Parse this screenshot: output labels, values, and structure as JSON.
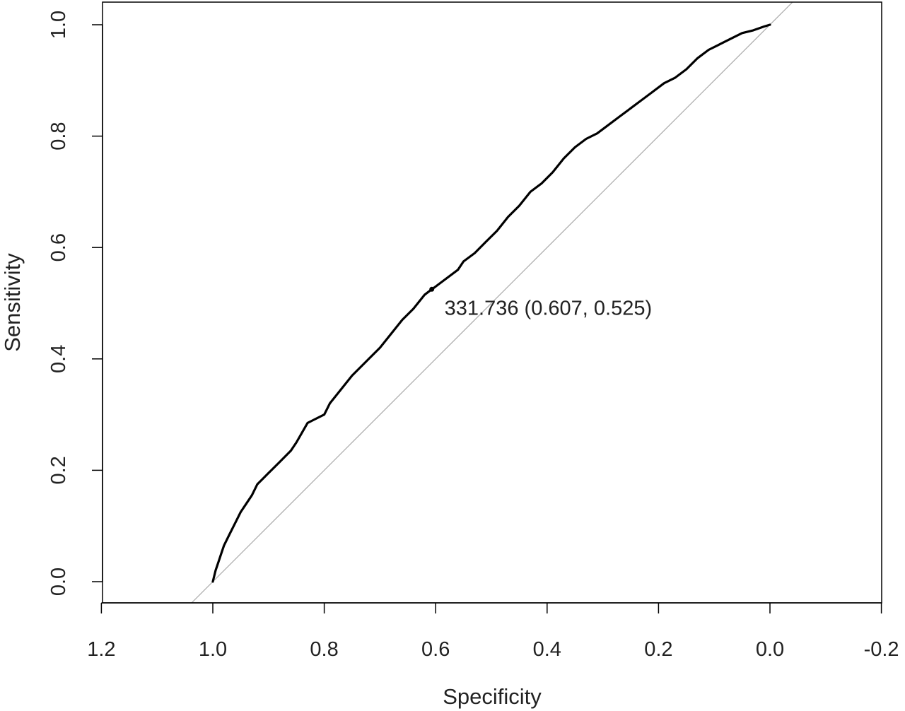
{
  "chart_data": {
    "type": "line",
    "title": "",
    "xlabel": "Specificity",
    "ylabel": "Sensitivity",
    "x_reversed": true,
    "xlim": [
      1.2,
      -0.2
    ],
    "ylim": [
      0.0,
      1.0
    ],
    "x_ticks": [
      1.2,
      1.0,
      0.8,
      0.6,
      0.4,
      0.2,
      0.0,
      -0.2
    ],
    "x_tick_labels": [
      "1.2",
      "1.0",
      "0.8",
      "0.6",
      "0.4",
      "0.2",
      "0.0",
      "-0.2"
    ],
    "y_ticks": [
      0.0,
      0.2,
      0.4,
      0.6,
      0.8,
      1.0
    ],
    "y_tick_labels": [
      "0.0",
      "0.2",
      "0.4",
      "0.6",
      "0.8",
      "1.0"
    ],
    "grid": false,
    "legend": "none",
    "series": [
      {
        "color": "#000000",
        "x": [
          1.0,
          0.995,
          0.99,
          0.985,
          0.98,
          0.97,
          0.96,
          0.95,
          0.94,
          0.93,
          0.92,
          0.91,
          0.9,
          0.88,
          0.86,
          0.85,
          0.83,
          0.82,
          0.8,
          0.79,
          0.77,
          0.75,
          0.72,
          0.7,
          0.68,
          0.66,
          0.64,
          0.62,
          0.607,
          0.6,
          0.58,
          0.56,
          0.55,
          0.53,
          0.51,
          0.49,
          0.47,
          0.45,
          0.43,
          0.41,
          0.39,
          0.37,
          0.35,
          0.33,
          0.31,
          0.29,
          0.27,
          0.25,
          0.23,
          0.21,
          0.19,
          0.17,
          0.15,
          0.13,
          0.11,
          0.09,
          0.07,
          0.05,
          0.03,
          0.01,
          0.0
        ],
        "y": [
          0.0,
          0.02,
          0.035,
          0.05,
          0.065,
          0.085,
          0.105,
          0.125,
          0.14,
          0.155,
          0.175,
          0.185,
          0.195,
          0.215,
          0.235,
          0.25,
          0.285,
          0.29,
          0.3,
          0.32,
          0.345,
          0.37,
          0.4,
          0.42,
          0.445,
          0.47,
          0.49,
          0.515,
          0.525,
          0.53,
          0.545,
          0.56,
          0.575,
          0.59,
          0.61,
          0.63,
          0.655,
          0.675,
          0.7,
          0.715,
          0.735,
          0.76,
          0.78,
          0.795,
          0.805,
          0.82,
          0.835,
          0.85,
          0.865,
          0.88,
          0.895,
          0.905,
          0.92,
          0.94,
          0.955,
          0.965,
          0.975,
          0.985,
          0.99,
          0.997,
          1.0
        ]
      }
    ],
    "reference_line": {
      "x": [
        1.0,
        0.0
      ],
      "y": [
        0.0,
        1.0
      ],
      "color": "#aaaaaa"
    },
    "annotation": {
      "text": "331.736 (0.607, 0.525)",
      "x": 0.607,
      "y": 0.525
    }
  }
}
